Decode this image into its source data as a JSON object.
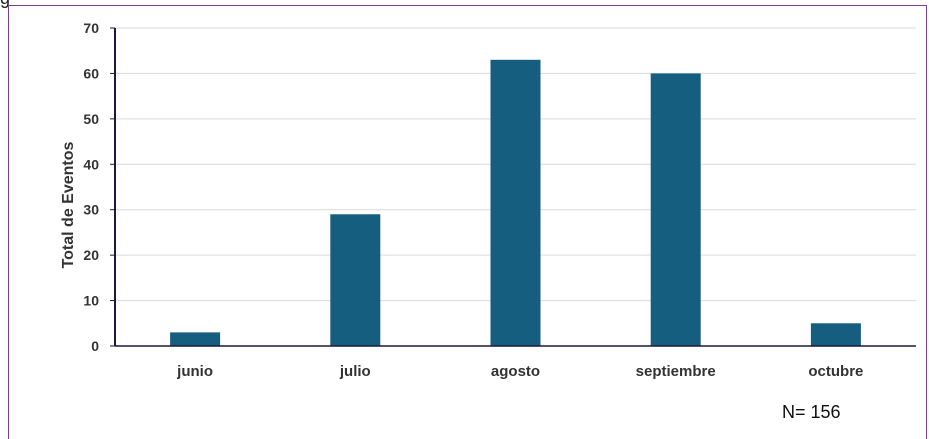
{
  "header_fragment": "g",
  "note": "N= 156",
  "colors": {
    "bar": "#165e80",
    "grid": "#d9d9d9",
    "axis": "#1a1a3a",
    "frame": "#7b3f98"
  },
  "chart_data": {
    "type": "bar",
    "categories": [
      "junio",
      "julio",
      "agosto",
      "septiembre",
      "octubre"
    ],
    "values": [
      3,
      29,
      63,
      60,
      5
    ],
    "xlabel": "",
    "ylabel": "Total de Eventos",
    "ylim": [
      0,
      70
    ],
    "yticks": [
      0,
      10,
      20,
      30,
      40,
      50,
      60,
      70
    ],
    "grid": true
  }
}
